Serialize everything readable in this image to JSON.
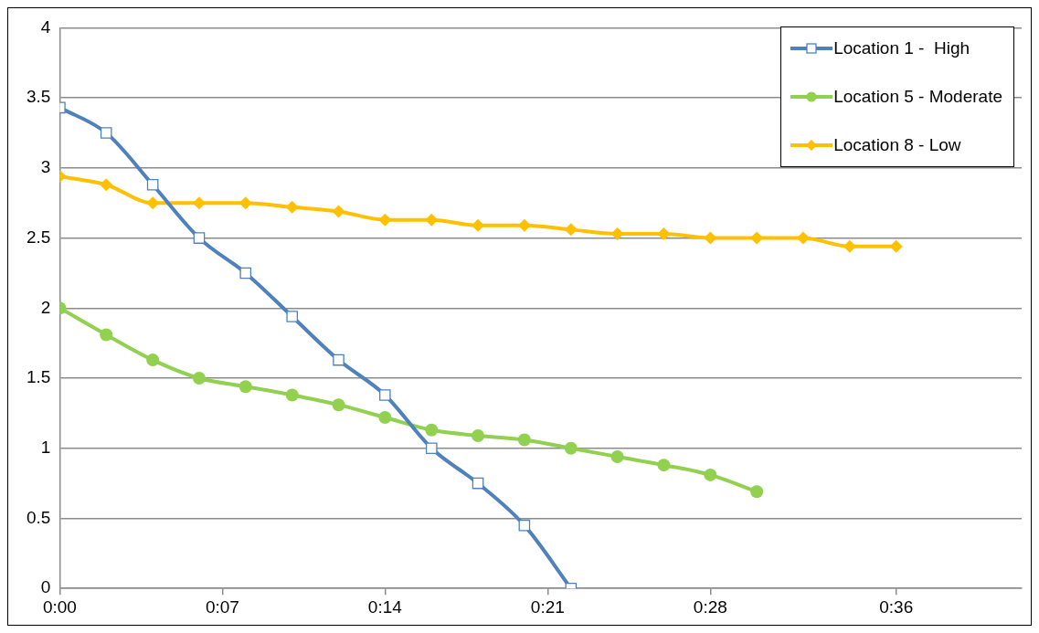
{
  "chart_data": {
    "type": "line",
    "xlim": [
      0,
      0.69
    ],
    "xticks": [
      {
        "value": 0,
        "label": "0:00"
      },
      {
        "value": 0.1167,
        "label": "0:07"
      },
      {
        "value": 0.2333,
        "label": "0:14"
      },
      {
        "value": 0.35,
        "label": "0:21"
      },
      {
        "value": 0.4667,
        "label": "0:28"
      },
      {
        "value": 0.6,
        "label": "0:36"
      }
    ],
    "ylim": [
      0,
      4
    ],
    "yticks": [
      0,
      0.5,
      1,
      1.5,
      2,
      2.5,
      3,
      3.5,
      4
    ],
    "grid": "y",
    "legend": "top right",
    "series": [
      {
        "name": "Location 1 -  High",
        "color": "#4f81bd",
        "marker": "square",
        "x": [
          0,
          0.0333,
          0.0667,
          0.1,
          0.1333,
          0.1667,
          0.2,
          0.2333,
          0.2667,
          0.3,
          0.3333,
          0.3667
        ],
        "values": [
          3.43,
          3.25,
          2.88,
          2.5,
          2.25,
          1.94,
          1.63,
          1.38,
          1.0,
          0.75,
          0.45,
          0
        ]
      },
      {
        "name": "Location 5 - Moderate",
        "color": "#92d050",
        "marker": "circle",
        "x": [
          0,
          0.0333,
          0.0667,
          0.1,
          0.1333,
          0.1667,
          0.2,
          0.2333,
          0.2667,
          0.3,
          0.3333,
          0.3667,
          0.4,
          0.4333,
          0.4667,
          0.5
        ],
        "values": [
          2.0,
          1.81,
          1.63,
          1.5,
          1.44,
          1.38,
          1.31,
          1.22,
          1.13,
          1.09,
          1.06,
          1.0,
          0.94,
          0.88,
          0.81,
          0.69
        ]
      },
      {
        "name": "Location 8 - Low",
        "color": "#ffc000",
        "marker": "diamond",
        "x": [
          0,
          0.0333,
          0.0667,
          0.1,
          0.1333,
          0.1667,
          0.2,
          0.2333,
          0.2667,
          0.3,
          0.3333,
          0.3667,
          0.4,
          0.4333,
          0.4667,
          0.5,
          0.5333,
          0.5667,
          0.6
        ],
        "values": [
          2.94,
          2.88,
          2.75,
          2.75,
          2.75,
          2.72,
          2.69,
          2.63,
          2.63,
          2.59,
          2.59,
          2.56,
          2.53,
          2.53,
          2.5,
          2.5,
          2.5,
          2.44,
          2.44
        ]
      }
    ]
  }
}
